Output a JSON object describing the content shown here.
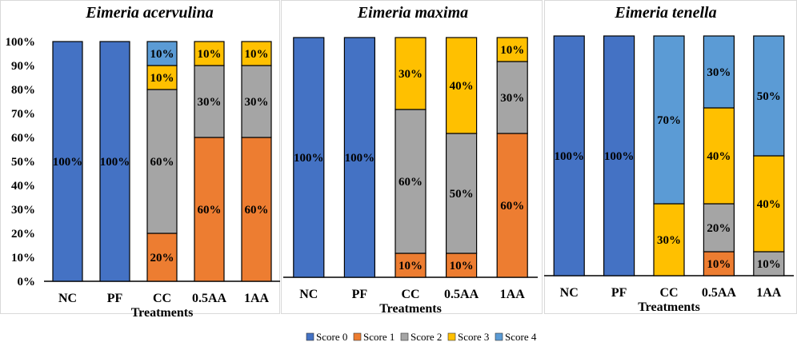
{
  "chart_data": [
    {
      "type": "bar",
      "stacked": true,
      "title": "Eimeria acervulina",
      "xlabel": "Treatments",
      "ylabel": "",
      "ylim": [
        0,
        100
      ],
      "yticks": [
        "0%",
        "10%",
        "20%",
        "30%",
        "40%",
        "50%",
        "60%",
        "70%",
        "80%",
        "90%",
        "100%"
      ],
      "categories": [
        "NC",
        "PF",
        "CC",
        "0.5AA",
        "1AA"
      ],
      "series": [
        {
          "name": "Score 0",
          "values": [
            100,
            100,
            0,
            0,
            0
          ]
        },
        {
          "name": "Score 1",
          "values": [
            0,
            0,
            20,
            60,
            60
          ]
        },
        {
          "name": "Score 2",
          "values": [
            0,
            0,
            60,
            30,
            30
          ]
        },
        {
          "name": "Score 3",
          "values": [
            0,
            0,
            10,
            10,
            10
          ]
        },
        {
          "name": "Score 4",
          "values": [
            0,
            0,
            10,
            0,
            0
          ]
        }
      ]
    },
    {
      "type": "bar",
      "stacked": true,
      "title": "Eimeria maxima",
      "xlabel": "Treatments",
      "ylabel": "",
      "ylim": [
        0,
        100
      ],
      "categories": [
        "NC",
        "PF",
        "CC",
        "0.5AA",
        "1AA"
      ],
      "series": [
        {
          "name": "Score 0",
          "values": [
            100,
            100,
            0,
            0,
            0
          ]
        },
        {
          "name": "Score 1",
          "values": [
            0,
            0,
            10,
            10,
            60
          ]
        },
        {
          "name": "Score 2",
          "values": [
            0,
            0,
            60,
            50,
            30
          ]
        },
        {
          "name": "Score 3",
          "values": [
            0,
            0,
            30,
            40,
            10
          ]
        },
        {
          "name": "Score 4",
          "values": [
            0,
            0,
            0,
            0,
            0
          ]
        }
      ]
    },
    {
      "type": "bar",
      "stacked": true,
      "title": "Eimeria tenella",
      "xlabel": "Treatments",
      "ylabel": "",
      "ylim": [
        0,
        100
      ],
      "categories": [
        "NC",
        "PF",
        "CC",
        "0.5AA",
        "1AA"
      ],
      "series": [
        {
          "name": "Score 0",
          "values": [
            100,
            100,
            0,
            0,
            0
          ]
        },
        {
          "name": "Score 1",
          "values": [
            0,
            0,
            0,
            10,
            0
          ]
        },
        {
          "name": "Score 2",
          "values": [
            0,
            0,
            0,
            20,
            10
          ]
        },
        {
          "name": "Score 3",
          "values": [
            0,
            0,
            30,
            40,
            40
          ]
        },
        {
          "name": "Score 4",
          "values": [
            0,
            0,
            70,
            30,
            50
          ]
        }
      ]
    }
  ],
  "legend": {
    "position": "bottom",
    "items": [
      {
        "name": "Score 0",
        "color": "#4472C4"
      },
      {
        "name": "Score 1",
        "color": "#ED7D31"
      },
      {
        "name": "Score 2",
        "color": "#A5A5A5"
      },
      {
        "name": "Score 3",
        "color": "#FFC000"
      },
      {
        "name": "Score 4",
        "color": "#5B9BD5"
      }
    ]
  }
}
